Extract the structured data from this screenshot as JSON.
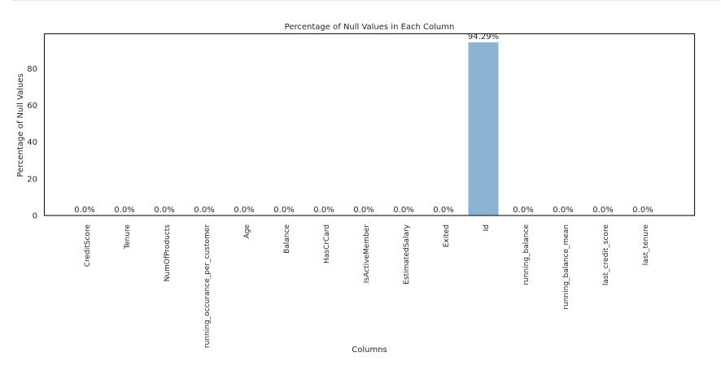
{
  "chart_data": {
    "type": "bar",
    "title": "Percentage of Null Values in Each Column",
    "xlabel": "Columns",
    "ylabel": "Percentage of Null Values",
    "categories": [
      "CreditScore",
      "Tenure",
      "NumOfProducts",
      "running_occurance_per_customer",
      "Age",
      "Balance",
      "HasCrCard",
      "IsActiveMember",
      "EstimatedSalary",
      "Exited",
      "Id",
      "running_balance",
      "running_balance_mean",
      "last_credit_score",
      "last_tenure"
    ],
    "values": [
      0,
      0,
      0,
      0,
      0,
      0,
      0,
      0,
      0,
      0,
      94.29,
      0,
      0,
      0,
      0
    ],
    "data_labels": [
      "0.0%",
      "0.0%",
      "0.0%",
      "0.0%",
      "0.0%",
      "0.0%",
      "0.0%",
      "0.0%",
      "0.0%",
      "0.0%",
      "94.29%",
      "0.0%",
      "0.0%",
      "0.0%",
      "0.0%"
    ],
    "yticks": [
      0,
      20,
      40,
      60,
      80
    ],
    "ylim": [
      0,
      99
    ],
    "grid": false,
    "bar_color": "#8db3d2"
  }
}
